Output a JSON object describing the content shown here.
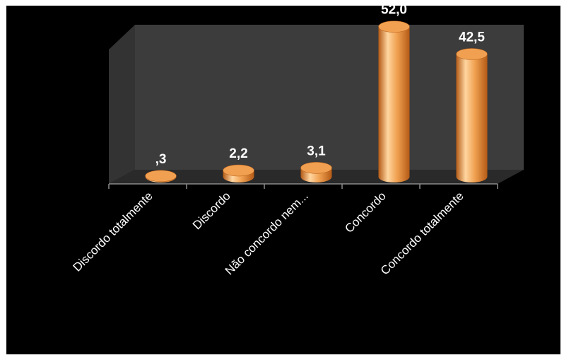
{
  "chart_data": {
    "type": "bar",
    "style": "3d-cylinder",
    "categories": [
      "Discordo totalmente",
      "Discordo",
      "Não concordo nem...",
      "Concordo",
      "Concordo totalmente"
    ],
    "values": [
      0.3,
      2.2,
      3.1,
      52.0,
      42.5
    ],
    "value_labels": [
      ",3",
      "2,2",
      "3,1",
      "52,0",
      "42,5"
    ],
    "title": "",
    "xlabel": "",
    "ylabel": "",
    "ylim": [
      0,
      60
    ],
    "grid": false,
    "legend": "none",
    "colors": {
      "bar": "#f0a050",
      "bar_light": "#ffd6a0",
      "bar_dark": "#b45a16",
      "wall": "#3c3c3c",
      "floor": "#2a2a2a",
      "background": "#000000"
    }
  }
}
